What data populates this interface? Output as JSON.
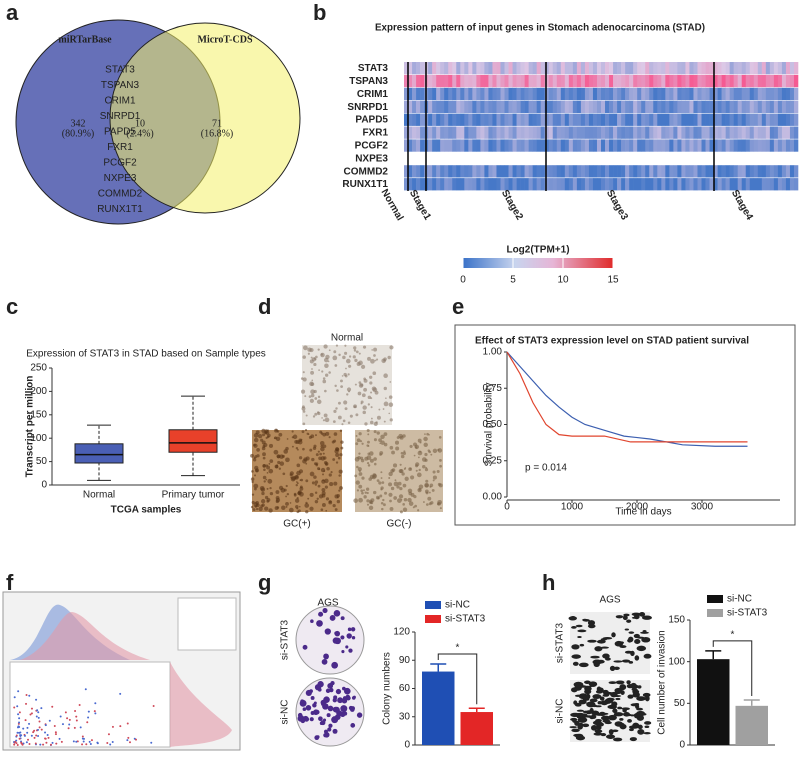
{
  "panel_labels": [
    "a",
    "b",
    "c",
    "d",
    "e",
    "f",
    "g",
    "h"
  ],
  "venn": {
    "left_title": "miRTarBase",
    "right_title": "MicroT-CDS",
    "genes": [
      "STAT3",
      "TSPAN3",
      "CRIM1",
      "SNRPD1",
      "PAPD5",
      "FXR1",
      "PCGF2",
      "NXPE3",
      "COMMD2",
      "RUNX1T1"
    ],
    "left_count": 342,
    "left_pct": "(80.9%)",
    "mid_count": 10,
    "mid_pct": "(2.4%)",
    "right_count": 71,
    "right_pct": "(16.8%)"
  },
  "heatmap": {
    "title": "Expression pattern of input genes in Stomach adenocarcinoma (STAD)",
    "genes": [
      "STAT3",
      "TSPAN3",
      "CRIM1",
      "SNRPD1",
      "PAPD5",
      "FXR1",
      "PCGF2",
      "NXPE3",
      "COMMD2",
      "RUNX1T1"
    ],
    "stages": [
      "Normal",
      "Stage1",
      "Stage2",
      "Stage3",
      "Stage4"
    ],
    "colorbar_title": "Log2(TPM+1)",
    "colorbar_ticks": [
      0,
      5,
      10,
      15
    ]
  },
  "ihc": {
    "title": "Normal",
    "labels": [
      "GC(+)",
      "GC(-)"
    ]
  },
  "colony": {
    "cell_line": "AGS",
    "rows": [
      "si-STAT3",
      "si-NC"
    ]
  },
  "invasion": {
    "cell_line": "AGS",
    "rows": [
      "si-STAT3",
      "si-NC"
    ]
  },
  "chart_data": [
    {
      "type": "box",
      "title": "Expression of STAT3 in STAD based on Sample types",
      "x_label": "TCGA samples",
      "y_label": "Transcript per million",
      "categories": [
        "Normal",
        "Primary tumor"
      ],
      "colors": [
        "#4a5fb5",
        "#e8412a"
      ],
      "min": [
        10,
        20
      ],
      "q1": [
        47,
        70
      ],
      "median": [
        65,
        90
      ],
      "q3": [
        88,
        118
      ],
      "max": [
        128,
        190
      ],
      "ylim": [
        0,
        250
      ],
      "yticks": [
        0,
        50,
        100,
        150,
        200,
        250
      ]
    },
    {
      "type": "line",
      "title": "Effect of STAT3 expression level on STAD patient survival",
      "annotation": "p = 0.014",
      "x_label": "Time in days",
      "y_label": "Survival probability",
      "xlim": [
        0,
        4200
      ],
      "xticks": [
        0,
        1000,
        2000,
        3000
      ],
      "ylim": [
        0,
        1
      ],
      "yticks": [
        {
          "value": 0,
          "label": "0.00"
        },
        {
          "value": 0.25,
          "label": "0.25"
        },
        {
          "value": 0.5,
          "label": "0.50"
        },
        {
          "value": 0.75,
          "label": "0.75"
        },
        {
          "value": 1,
          "label": "1.00"
        }
      ],
      "series": [
        {
          "color": "#3c5fb0",
          "x": [
            0,
            200,
            400,
            600,
            800,
            1000,
            1200,
            1500,
            1800,
            2200,
            2700,
            3200,
            3700
          ],
          "values": [
            1,
            0.9,
            0.8,
            0.7,
            0.62,
            0.55,
            0.5,
            0.46,
            0.42,
            0.4,
            0.36,
            0.35,
            0.35
          ]
        },
        {
          "color": "#e0452e",
          "x": [
            0,
            200,
            400,
            600,
            800,
            1000,
            1500,
            1900,
            2300,
            3700
          ],
          "values": [
            1,
            0.85,
            0.65,
            0.5,
            0.43,
            0.42,
            0.42,
            0.38,
            0.38,
            0.38
          ]
        }
      ]
    },
    {
      "type": "bar",
      "y_label": "Colony numbers",
      "annotation": "*",
      "ylim": [
        0,
        120
      ],
      "yticks": [
        0,
        30,
        60,
        90,
        120
      ],
      "series": [
        {
          "name": "si-NC",
          "color": "#1f4fb4",
          "values": [
            78
          ],
          "errors": [
            8
          ]
        },
        {
          "name": "si-STAT3",
          "color": "#e32626",
          "values": [
            35
          ],
          "errors": [
            4
          ]
        }
      ]
    },
    {
      "type": "bar",
      "y_label": "Cell number of invasion",
      "annotation": "*",
      "ylim": [
        0,
        150
      ],
      "yticks": [
        0,
        50,
        100,
        150
      ],
      "series": [
        {
          "name": "si-NC",
          "color": "#111111",
          "values": [
            103
          ],
          "errors": [
            10
          ]
        },
        {
          "name": "si-STAT3",
          "color": "#a0a0a0",
          "values": [
            47
          ],
          "errors": [
            7
          ]
        }
      ]
    }
  ]
}
